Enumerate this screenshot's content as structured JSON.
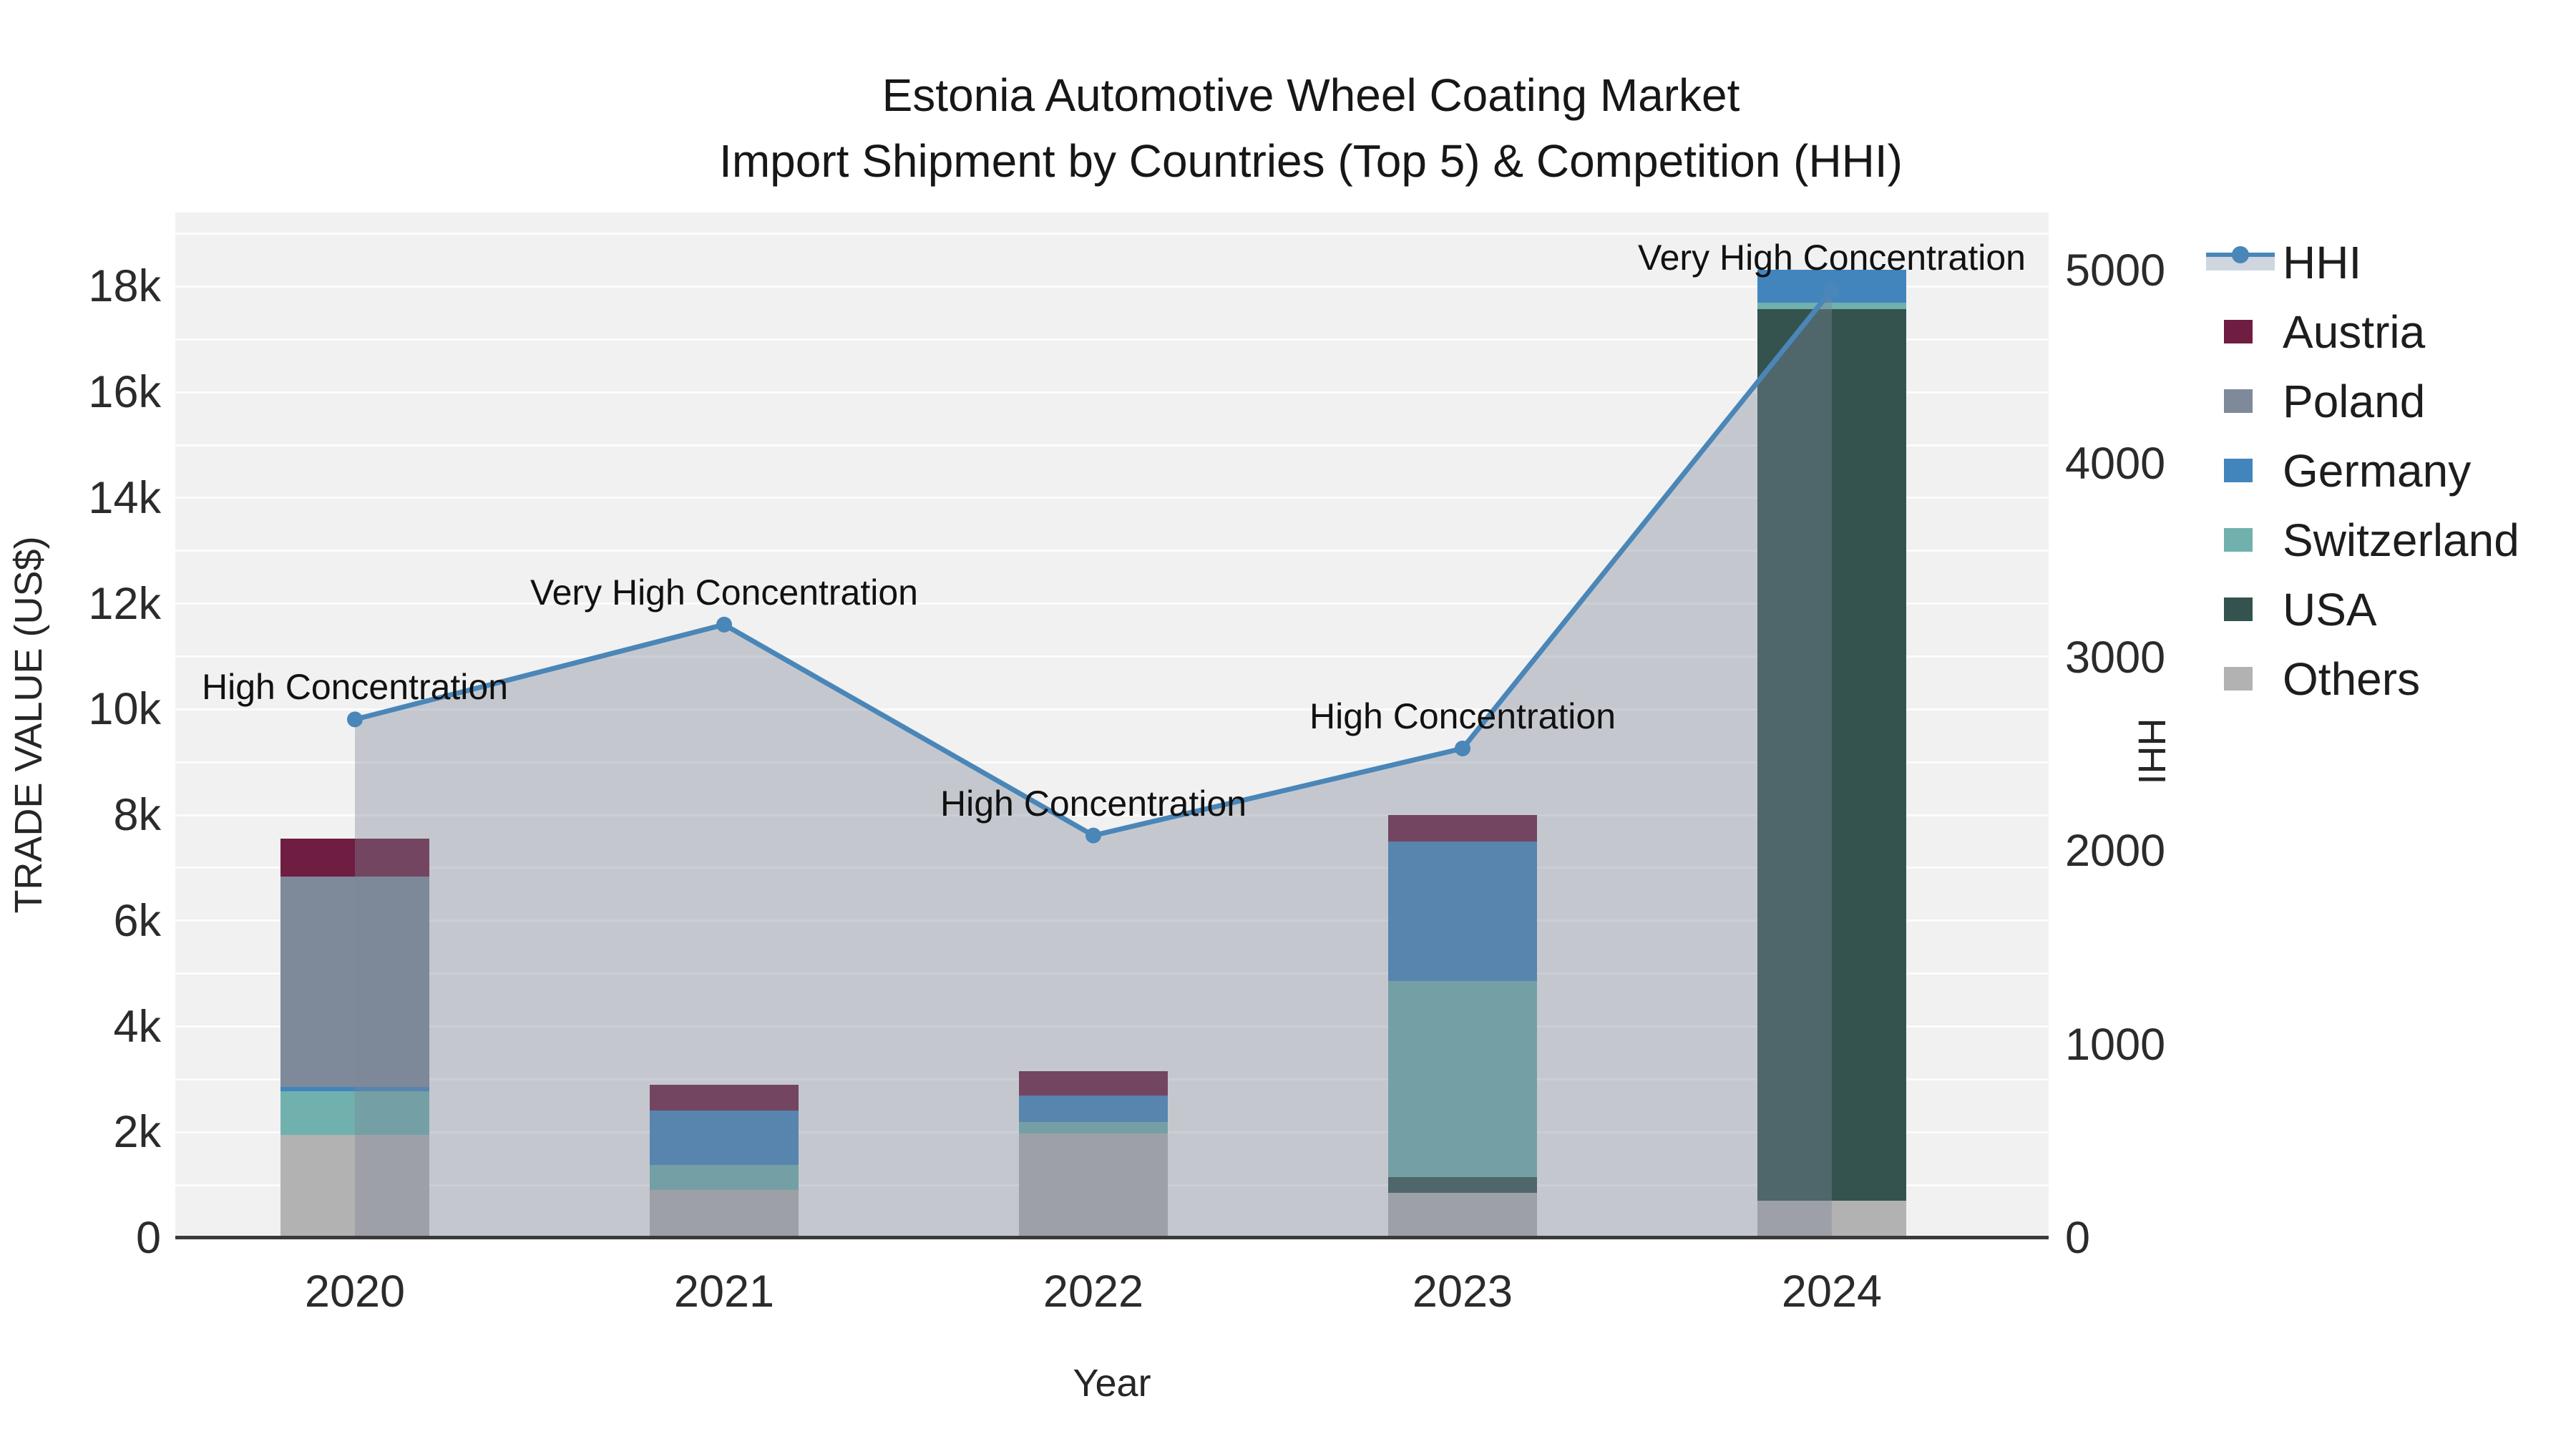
{
  "title": {
    "line1": "Estonia Automotive Wheel Coating Market",
    "line2": "Import Shipment by Countries (Top 5) & Competition (HHI)"
  },
  "axes": {
    "x": {
      "title": "Year",
      "categories": [
        "2020",
        "2021",
        "2022",
        "2023",
        "2024"
      ]
    },
    "y_left": {
      "title": "TRADE VALUE (US$)",
      "ticks": [
        {
          "label": "0",
          "value": 0
        },
        {
          "label": "2k",
          "value": 2000
        },
        {
          "label": "4k",
          "value": 4000
        },
        {
          "label": "6k",
          "value": 6000
        },
        {
          "label": "8k",
          "value": 8000
        },
        {
          "label": "10k",
          "value": 10000
        },
        {
          "label": "12k",
          "value": 12000
        },
        {
          "label": "14k",
          "value": 14000
        },
        {
          "label": "16k",
          "value": 16000
        },
        {
          "label": "18k",
          "value": 18000
        }
      ]
    },
    "y_right": {
      "title": "HHI",
      "ticks": [
        {
          "label": "0",
          "value": 0
        },
        {
          "label": "1000",
          "value": 1000
        },
        {
          "label": "2000",
          "value": 2000
        },
        {
          "label": "3000",
          "value": 3000
        },
        {
          "label": "4000",
          "value": 4000
        },
        {
          "label": "5000",
          "value": 5000
        }
      ]
    }
  },
  "legend": {
    "items": [
      {
        "label": "HHI",
        "kind": "line",
        "color": "#4a86b8"
      },
      {
        "label": "Austria",
        "kind": "swatch",
        "color": "#6f1d41"
      },
      {
        "label": "Poland",
        "kind": "swatch",
        "color": "#7e8a9a"
      },
      {
        "label": "Germany",
        "kind": "swatch",
        "color": "#4285bd"
      },
      {
        "label": "Switzerland",
        "kind": "swatch",
        "color": "#70b1ae"
      },
      {
        "label": "USA",
        "kind": "swatch",
        "color": "#34534f"
      },
      {
        "label": "Others",
        "kind": "swatch",
        "color": "#b2b2b2"
      }
    ]
  },
  "chart_data": {
    "type": "bar+line",
    "title": "Estonia Automotive Wheel Coating Market — Import Shipment by Countries (Top 5) & Competition (HHI)",
    "categories": [
      "2020",
      "2021",
      "2022",
      "2023",
      "2024"
    ],
    "stack_order_bottom_to_top": [
      "Others",
      "USA",
      "Switzerland",
      "Germany",
      "Poland",
      "Austria"
    ],
    "series": [
      {
        "name": "Austria",
        "color": "#6f1d41",
        "values": [
          720,
          490,
          470,
          500,
          0
        ]
      },
      {
        "name": "Poland",
        "color": "#7e8a9a",
        "values": [
          3980,
          0,
          0,
          0,
          0
        ]
      },
      {
        "name": "Germany",
        "color": "#4285bd",
        "values": [
          70,
          1030,
          500,
          2640,
          620
        ]
      },
      {
        "name": "Switzerland",
        "color": "#70b1ae",
        "values": [
          830,
          470,
          210,
          3710,
          130
        ]
      },
      {
        "name": "USA",
        "color": "#34534f",
        "values": [
          0,
          0,
          0,
          300,
          16870
        ]
      },
      {
        "name": "Others",
        "color": "#b2b2b2",
        "values": [
          1950,
          910,
          1980,
          850,
          700
        ]
      }
    ],
    "bar_totals": [
      7550,
      2900,
      3160,
      8000,
      18320
    ],
    "line": {
      "name": "HHI",
      "color": "#4a86b8",
      "fill_color": "rgba(124,134,151,0.38)",
      "values": [
        2680,
        3170,
        2080,
        2530,
        4900
      ],
      "annotations": [
        "High Concentration",
        "Very High Concentration",
        "High Concentration",
        "High Concentration",
        "Very High Concentration"
      ]
    },
    "xlabel": "Year",
    "ylabel_left": "TRADE VALUE (US$)",
    "ylabel_right": "HHI",
    "ylim_left": [
      0,
      19400
    ],
    "ylim_right": [
      0,
      5300
    ],
    "grid": true,
    "legend_position": "right",
    "plot_bg": "#f1f1f1"
  }
}
